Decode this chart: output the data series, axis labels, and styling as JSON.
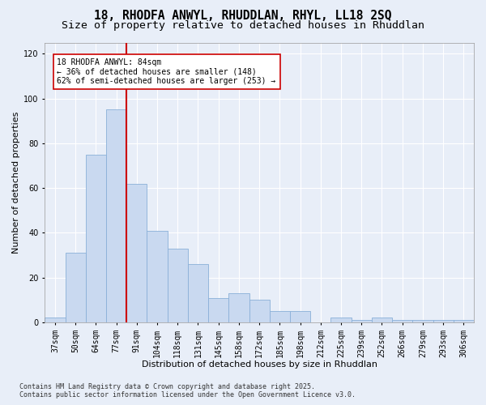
{
  "title_line1": "18, RHODFA ANWYL, RHUDDLAN, RHYL, LL18 2SQ",
  "title_line2": "Size of property relative to detached houses in Rhuddlan",
  "xlabel": "Distribution of detached houses by size in Rhuddlan",
  "ylabel": "Number of detached properties",
  "categories": [
    "37sqm",
    "50sqm",
    "64sqm",
    "77sqm",
    "91sqm",
    "104sqm",
    "118sqm",
    "131sqm",
    "145sqm",
    "158sqm",
    "172sqm",
    "185sqm",
    "198sqm",
    "212sqm",
    "225sqm",
    "239sqm",
    "252sqm",
    "266sqm",
    "279sqm",
    "293sqm",
    "306sqm"
  ],
  "values": [
    2,
    31,
    75,
    95,
    62,
    41,
    33,
    26,
    11,
    13,
    10,
    5,
    5,
    0,
    2,
    1,
    2,
    1,
    1,
    1,
    1
  ],
  "bar_color": "#c9d9f0",
  "bar_edge_color": "#8ab0d8",
  "annotation_text": "18 RHODFA ANWYL: 84sqm\n← 36% of detached houses are smaller (148)\n62% of semi-detached houses are larger (253) →",
  "annotation_box_facecolor": "#ffffff",
  "annotation_box_edgecolor": "#cc0000",
  "vline_color": "#cc0000",
  "vline_x": 3.5,
  "ylim": [
    0,
    125
  ],
  "yticks": [
    0,
    20,
    40,
    60,
    80,
    100,
    120
  ],
  "background_color": "#e8eef8",
  "plot_background": "#e8eef8",
  "grid_color": "#ffffff",
  "footer_line1": "Contains HM Land Registry data © Crown copyright and database right 2025.",
  "footer_line2": "Contains public sector information licensed under the Open Government Licence v3.0.",
  "title_fontsize": 10.5,
  "subtitle_fontsize": 9.5,
  "axis_label_fontsize": 8,
  "tick_fontsize": 7,
  "annotation_fontsize": 7,
  "footer_fontsize": 6
}
